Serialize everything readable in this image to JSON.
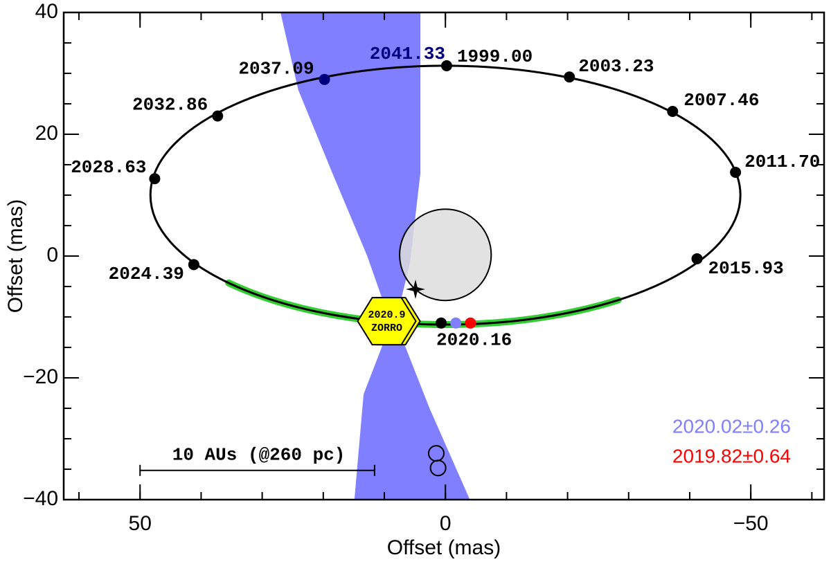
{
  "chart_data": {
    "type": "scatter",
    "xlabel": "Offset (mas)",
    "ylabel": "Offset (mas)",
    "xlim": [
      62.5,
      -62
    ],
    "ylim": [
      -40,
      40
    ],
    "xticks": [
      50,
      0,
      {
        "value": -50,
        "label": "−50"
      }
    ],
    "yticks": [
      40,
      20,
      0,
      {
        "value": -20,
        "label": "−20"
      },
      {
        "value": -40,
        "label": "−40"
      }
    ],
    "xminorticks": [
      60,
      50,
      40,
      30,
      20,
      10,
      0,
      -10,
      -20,
      -30,
      -40,
      -50,
      -60
    ],
    "yminorticks": [
      35,
      30,
      25,
      20,
      15,
      10,
      5,
      0,
      -5,
      -10,
      -15,
      -20,
      -25,
      -30,
      -35
    ],
    "region": {
      "color": "#7f7fff",
      "x": [
        27.0,
        24.1,
        18.5,
        12.8,
        10.0,
        9.9,
        13.4,
        14.9,
        -4.0,
        2.6,
        6.6,
        8.3,
        5.8,
        4.1,
        4.1
      ],
      "y": [
        40,
        27.3,
        13.6,
        0,
        -8,
        -13.6,
        -22.7,
        -40,
        -40,
        -25,
        -14.8,
        -11.4,
        -1.1,
        13.6,
        40
      ]
    },
    "circle": {
      "center": [
        0,
        0.2
      ],
      "radius": 7.5,
      "color": "#dddddd"
    },
    "orbit": {
      "center": [
        0,
        10
      ],
      "radii": [
        48.3,
        21.25
      ],
      "color": "#000000"
    },
    "arc": {
      "x_range": [
        35.5,
        -28.3
      ],
      "color": "#33cc33"
    },
    "star": {
      "x": 4.9,
      "y": -5.45
    },
    "epochs": {
      "x": [
        -0.2,
        -20.3,
        -37.2,
        -47.5,
        -41.2,
        0.7,
        41.2,
        47.6,
        37.3,
        19.8
      ],
      "y": [
        31.25,
        29.4,
        23.75,
        13.75,
        -0.45,
        -11.0,
        -1.4,
        12.7,
        23.0,
        29.0
      ],
      "labels": [
        "1999.00",
        "2003.23",
        "2007.46",
        "2011.70",
        "2015.93",
        "2020.16",
        "2024.39",
        "2028.63",
        "2032.86",
        "2037.09"
      ],
      "colors": [
        "#000000",
        "#000000",
        "#000000",
        "#000000",
        "#000000",
        "#000000",
        "#000000",
        "#000000",
        "#000000",
        "#00007f"
      ]
    },
    "extra_label": {
      "text": "2041.33",
      "color": "#00007f"
    },
    "series": [
      {
        "name": "2020.02±0.26",
        "color": "#7f7fff",
        "x": [
          -1.7
        ],
        "y": [
          -11.0
        ]
      },
      {
        "name": "2019.82±0.64",
        "color": "#ff0000",
        "x": [
          -4.1
        ],
        "y": [
          -11.0
        ]
      }
    ],
    "marker": {
      "x": 9.6,
      "y": -10.7,
      "lines": [
        "2020.9",
        "ZORRO"
      ],
      "color": "#ffff00"
    },
    "scalebar": {
      "x": [
        50,
        11.6
      ],
      "y": -35.2,
      "label": "10 AUs (@260 pc)"
    },
    "open_circles": {
      "x": [
        1.5,
        1.2
      ],
      "y": [
        -32.4,
        -34.8
      ],
      "radius": 1.25
    }
  }
}
